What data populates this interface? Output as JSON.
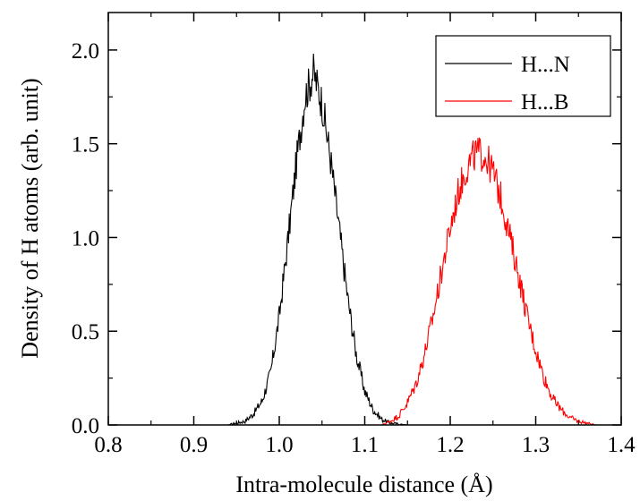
{
  "chart_data": {
    "type": "line",
    "title": "",
    "xlabel": "Intra-molecule distance (Å)",
    "ylabel": "Density of H atoms (arb. unit)",
    "xlim": [
      0.8,
      1.4
    ],
    "ylim": [
      0,
      2.2
    ],
    "x_ticks": [
      "0.8",
      "0.9",
      "1.0",
      "1.1",
      "1.2",
      "1.3",
      "1.4"
    ],
    "y_ticks": [
      "0.0",
      "0.5",
      "1.0",
      "1.5",
      "2.0"
    ],
    "grid": false,
    "legend_position": "top-right",
    "series": [
      {
        "name": "H...N",
        "color": "#000000",
        "x": [
          0.8,
          0.94,
          0.95,
          0.96,
          0.97,
          0.98,
          0.99,
          1.0,
          1.01,
          1.02,
          1.03,
          1.04,
          1.05,
          1.06,
          1.07,
          1.08,
          1.09,
          1.1,
          1.11,
          1.12,
          1.13,
          1.14,
          1.15,
          1.4
        ],
        "y": [
          0.0,
          0.0,
          0.01,
          0.02,
          0.06,
          0.13,
          0.28,
          0.58,
          0.98,
          1.4,
          1.75,
          1.88,
          1.72,
          1.42,
          1.05,
          0.68,
          0.38,
          0.18,
          0.08,
          0.03,
          0.01,
          0.005,
          0.0,
          0.0
        ]
      },
      {
        "name": "H...B",
        "color": "#ff0000",
        "x": [
          0.8,
          1.12,
          1.13,
          1.14,
          1.15,
          1.16,
          1.17,
          1.18,
          1.19,
          1.2,
          1.21,
          1.22,
          1.23,
          1.24,
          1.25,
          1.26,
          1.27,
          1.28,
          1.29,
          1.3,
          1.31,
          1.32,
          1.33,
          1.34,
          1.35,
          1.36,
          1.37,
          1.4
        ],
        "y": [
          0.0,
          0.0,
          0.02,
          0.05,
          0.12,
          0.22,
          0.38,
          0.58,
          0.82,
          1.05,
          1.25,
          1.38,
          1.45,
          1.44,
          1.35,
          1.2,
          1.0,
          0.8,
          0.58,
          0.4,
          0.25,
          0.14,
          0.08,
          0.04,
          0.02,
          0.01,
          0.0,
          0.0
        ]
      }
    ]
  }
}
